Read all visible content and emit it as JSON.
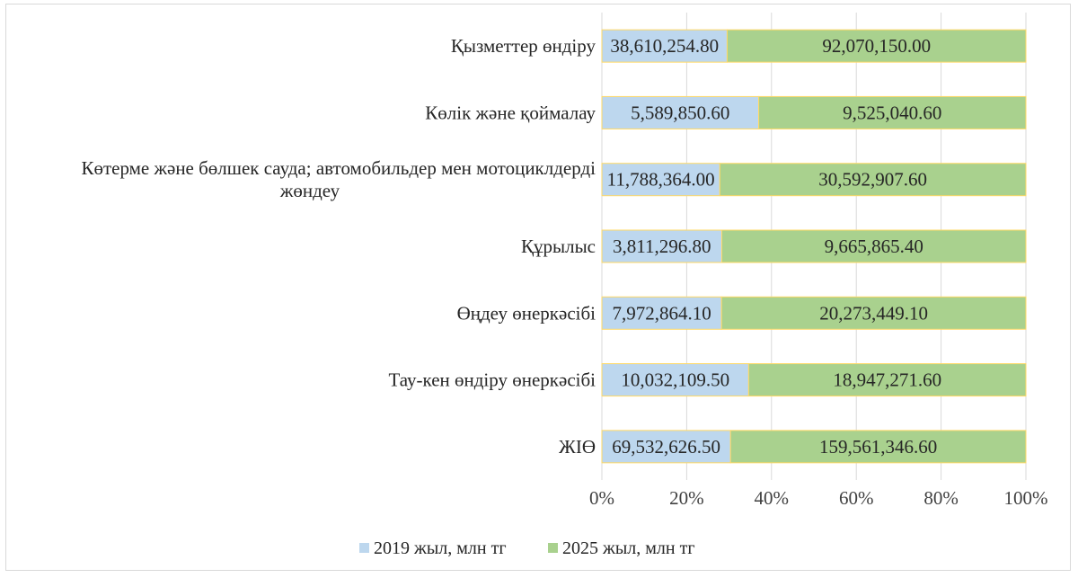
{
  "chart_data": {
    "type": "bar",
    "orientation": "horizontal",
    "stacked": "percent",
    "categories": [
      "Қызметтер өндіру",
      "Көлік және қоймалау",
      "Көтерме және бөлшек сауда; автомобильдер мен мотоциклдерді жөндеу",
      "Құрылыс",
      "Өңдеу өнеркәсібі",
      "Тау-кен өндіру өнеркәсібі",
      "ЖІӨ"
    ],
    "category_lines": [
      [
        "Қызметтер өндіру"
      ],
      [
        "Көлік және қоймалау"
      ],
      [
        "Көтерме және бөлшек сауда; автомобильдер мен мотоциклдерді",
        "жөндеу"
      ],
      [
        "Құрылыс"
      ],
      [
        "Өңдеу өнеркәсібі"
      ],
      [
        "Тау-кен өндіру өнеркәсібі"
      ],
      [
        "ЖІӨ"
      ]
    ],
    "series": [
      {
        "name": "2019 жыл, млн тг",
        "color": "#bdd7ee",
        "values": [
          38610254.8,
          5589850.6,
          11788364.0,
          3811296.8,
          7972864.1,
          10032109.5,
          69532626.5
        ],
        "labels": [
          "38,610,254.80",
          "5,589,850.60",
          "11,788,364.00",
          "3,811,296.80",
          "7,972,864.10",
          "10,032,109.50",
          "69,532,626.50"
        ]
      },
      {
        "name": "2025 жыл, млн тг",
        "color": "#a9d18e",
        "values": [
          92070150.0,
          9525040.6,
          30592907.6,
          9665865.4,
          20273449.1,
          18947271.6,
          159561346.6
        ],
        "labels": [
          "92,070,150.00",
          "9,525,040.60",
          "30,592,907.60",
          "9,665,865.40",
          "20,273,449.10",
          "18,947,271.60",
          "159,561,346.60"
        ]
      }
    ],
    "x_ticks": [
      "0%",
      "20%",
      "40%",
      "60%",
      "80%",
      "100%"
    ],
    "xlim": [
      0,
      100
    ],
    "grid": true,
    "legend_position": "bottom",
    "title": "",
    "xlabel": "",
    "ylabel": ""
  }
}
